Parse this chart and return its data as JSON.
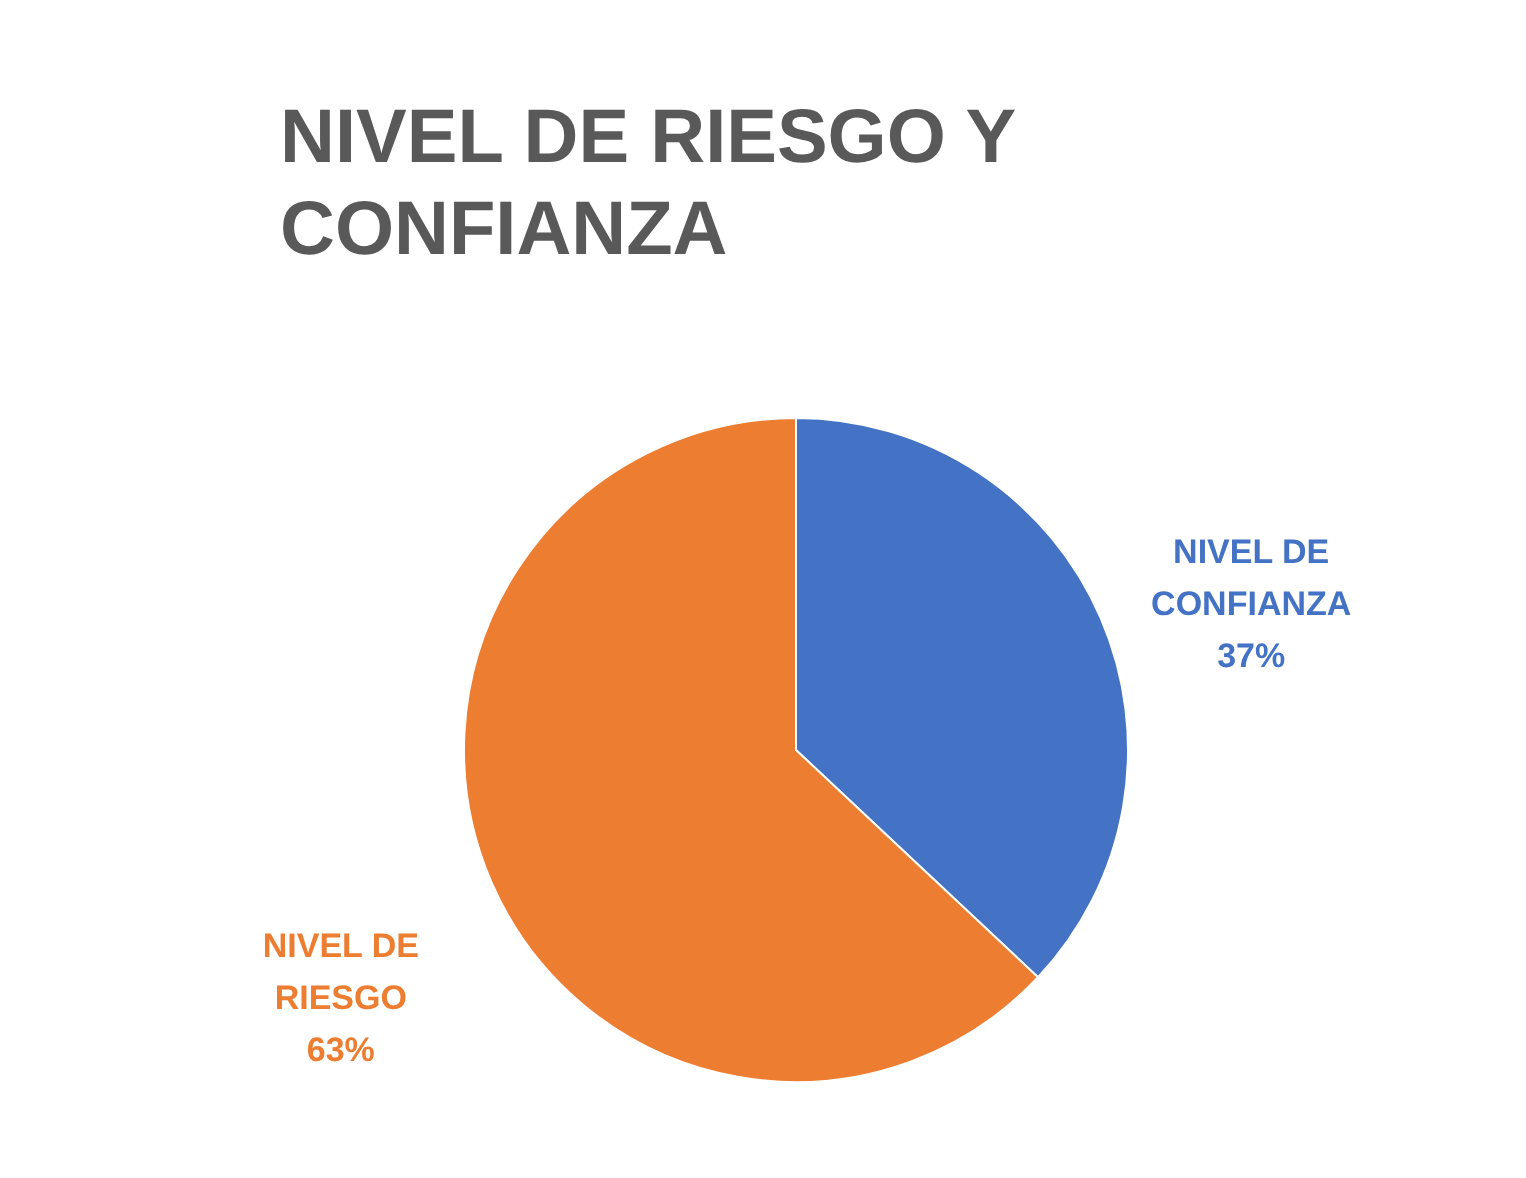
{
  "chart_data": {
    "type": "pie",
    "title": "NIVEL DE RIESGO Y CONFIANZA",
    "categories": [
      "NIVEL DE CONFIANZA",
      "NIVEL DE RIESGO"
    ],
    "values": [
      37,
      63
    ],
    "colors": [
      "#4472c4",
      "#ed7d31"
    ],
    "value_labels": [
      "37%",
      "63%"
    ]
  }
}
